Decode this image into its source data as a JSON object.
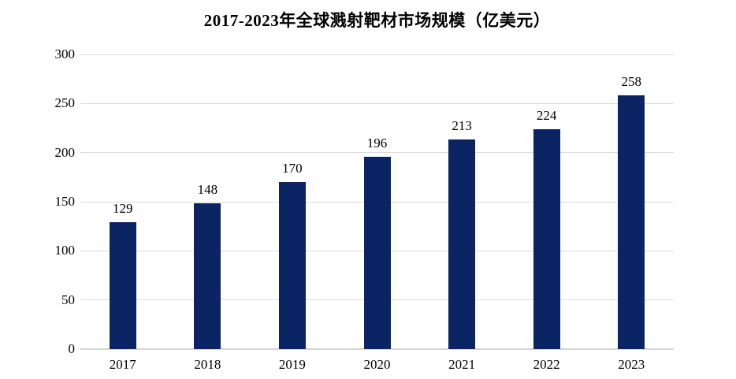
{
  "title": "2017-2023年全球溅射靶材市场规模（亿美元）",
  "colors": {
    "bar": "#0b2463",
    "gridline": "#dcdcdc",
    "axis_line": "#d6d6d6",
    "text": "#000000",
    "background": "#ffffff"
  },
  "chart_data": {
    "type": "bar",
    "title": "2017-2023年全球溅射靶材市场规模（亿美元）",
    "categories": [
      "2017",
      "2018",
      "2019",
      "2020",
      "2021",
      "2022",
      "2023"
    ],
    "values": [
      129,
      148,
      170,
      196,
      213,
      224,
      258
    ],
    "data_labels": [
      "129",
      "148",
      "170",
      "196",
      "213",
      "224",
      "258"
    ],
    "xlabel": "",
    "ylabel": "",
    "ylim": [
      0,
      300
    ],
    "yticks": [
      0,
      50,
      100,
      150,
      200,
      250,
      300
    ],
    "grid": true,
    "legend_position": "none",
    "bar_value_labels_visible": true
  }
}
